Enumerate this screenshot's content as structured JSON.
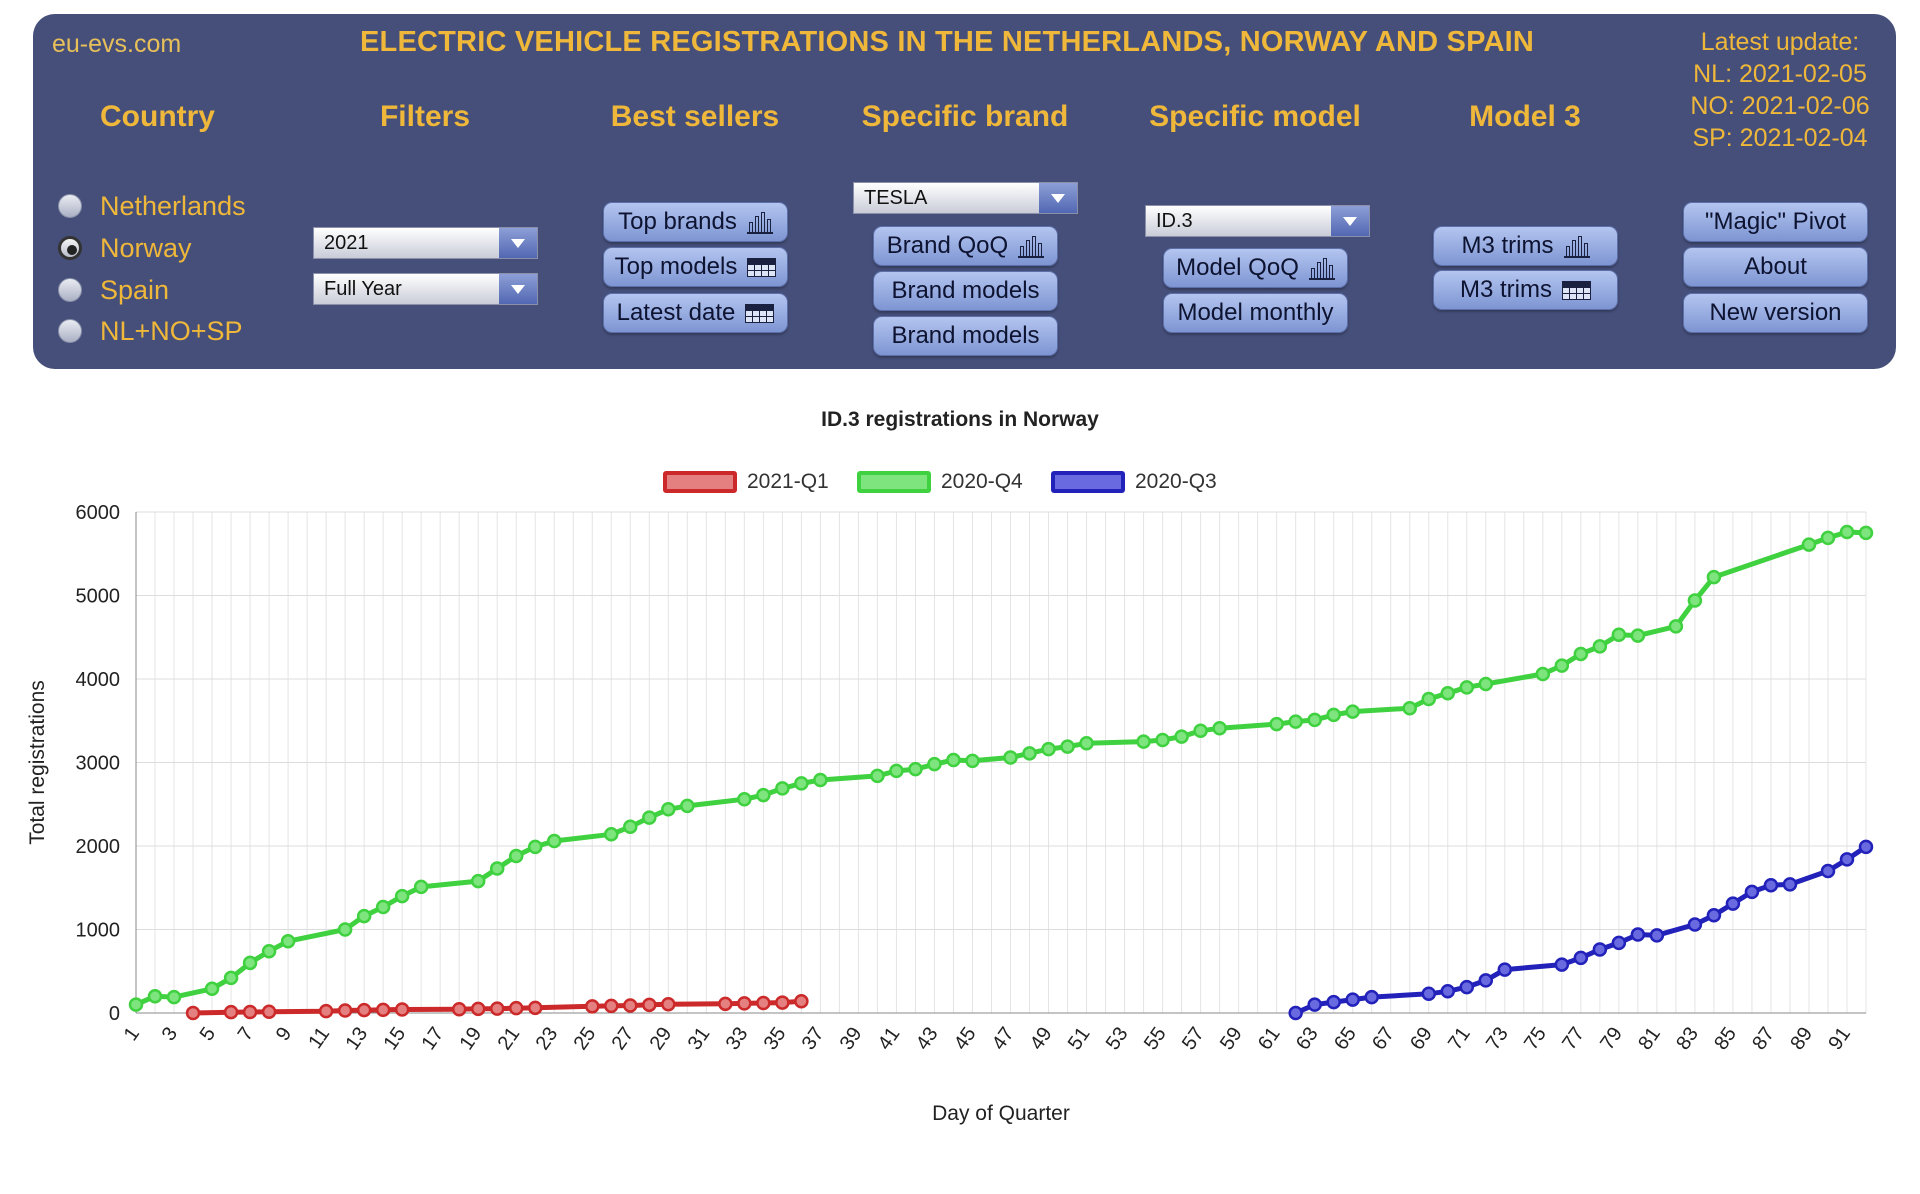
{
  "header": {
    "site": "eu-evs.com",
    "title": "ELECTRIC VEHICLE REGISTRATIONS IN THE NETHERLANDS, NORWAY AND SPAIN",
    "update_lines": [
      "Latest update:",
      "NL: 2021-02-05",
      "NO: 2021-02-06",
      "SP: 2021-02-04"
    ]
  },
  "sections": {
    "country": "Country",
    "filters": "Filters",
    "best": "Best sellers",
    "brand": "Specific brand",
    "model": "Specific model",
    "m3": "Model 3"
  },
  "countries": [
    {
      "label": "Netherlands",
      "selected": false
    },
    {
      "label": "Norway",
      "selected": true
    },
    {
      "label": "Spain",
      "selected": false
    },
    {
      "label": "NL+NO+SP",
      "selected": false
    }
  ],
  "filters": {
    "year": "2021",
    "period": "Full Year"
  },
  "best_sellers": {
    "top_brands": "Top brands",
    "top_models": "Top models",
    "latest_date": "Latest date"
  },
  "brand": {
    "selected": "TESLA",
    "qoq": "Brand QoQ",
    "models1": "Brand models",
    "models2": "Brand models"
  },
  "model": {
    "selected": "ID.3",
    "qoq": "Model QoQ",
    "monthly": "Model monthly"
  },
  "m3": {
    "trims1": "M3 trims",
    "trims2": "M3 trims"
  },
  "extra": {
    "pivot": "\"Magic\" Pivot",
    "about": "About",
    "new_version": "New version"
  },
  "colors": {
    "panel": "#454f7a",
    "accent": "#f0b83a"
  },
  "chart_data": {
    "type": "line",
    "title": "ID.3 registrations in Norway",
    "xlabel": "Day of Quarter",
    "ylabel": "Total registrations",
    "xlim": [
      1,
      92
    ],
    "ylim": [
      0,
      6000
    ],
    "yticks": [
      0,
      1000,
      2000,
      3000,
      4000,
      5000,
      6000
    ],
    "xtick_labels": [
      "1",
      "3",
      "5",
      "7",
      "9",
      "11",
      "13",
      "15",
      "17",
      "19",
      "21",
      "23",
      "25",
      "27",
      "29",
      "31",
      "33",
      "35",
      "37",
      "39",
      "41",
      "43",
      "45",
      "47",
      "49",
      "51",
      "53",
      "55",
      "57",
      "59",
      "61",
      "63",
      "65",
      "67",
      "69",
      "71",
      "73",
      "75",
      "77",
      "79",
      "81",
      "83",
      "85",
      "87",
      "89",
      "91"
    ],
    "legend_position": "top",
    "grid": true,
    "series": [
      {
        "name": "2021-Q1",
        "color": "#cc2a2a",
        "fill": "#e58080",
        "points": [
          [
            4,
            0
          ],
          [
            6,
            10
          ],
          [
            7,
            12
          ],
          [
            8,
            15
          ],
          [
            11,
            22
          ],
          [
            12,
            30
          ],
          [
            13,
            35
          ],
          [
            14,
            38
          ],
          [
            15,
            42
          ],
          [
            18,
            45
          ],
          [
            19,
            50
          ],
          [
            20,
            52
          ],
          [
            21,
            58
          ],
          [
            22,
            62
          ],
          [
            25,
            80
          ],
          [
            26,
            85
          ],
          [
            27,
            90
          ],
          [
            28,
            98
          ],
          [
            29,
            105
          ],
          [
            32,
            110
          ],
          [
            33,
            115
          ],
          [
            34,
            120
          ],
          [
            35,
            125
          ],
          [
            36,
            140
          ]
        ]
      },
      {
        "name": "2020-Q4",
        "color": "#3fd13f",
        "fill": "#7ee57e",
        "points": [
          [
            1,
            100
          ],
          [
            2,
            200
          ],
          [
            3,
            190
          ],
          [
            5,
            290
          ],
          [
            6,
            420
          ],
          [
            7,
            600
          ],
          [
            8,
            740
          ],
          [
            9,
            860
          ],
          [
            12,
            1000
          ],
          [
            13,
            1160
          ],
          [
            14,
            1270
          ],
          [
            15,
            1400
          ],
          [
            16,
            1510
          ],
          [
            19,
            1580
          ],
          [
            20,
            1730
          ],
          [
            21,
            1880
          ],
          [
            22,
            1990
          ],
          [
            23,
            2060
          ],
          [
            26,
            2140
          ],
          [
            27,
            2230
          ],
          [
            28,
            2340
          ],
          [
            29,
            2440
          ],
          [
            30,
            2480
          ],
          [
            33,
            2560
          ],
          [
            34,
            2610
          ],
          [
            35,
            2690
          ],
          [
            36,
            2750
          ],
          [
            37,
            2790
          ],
          [
            40,
            2840
          ],
          [
            41,
            2900
          ],
          [
            42,
            2920
          ],
          [
            43,
            2980
          ],
          [
            44,
            3030
          ],
          [
            45,
            3020
          ],
          [
            47,
            3060
          ],
          [
            48,
            3110
          ],
          [
            49,
            3160
          ],
          [
            50,
            3190
          ],
          [
            51,
            3230
          ],
          [
            54,
            3250
          ],
          [
            55,
            3270
          ],
          [
            56,
            3310
          ],
          [
            57,
            3380
          ],
          [
            58,
            3410
          ],
          [
            61,
            3460
          ],
          [
            62,
            3490
          ],
          [
            63,
            3510
          ],
          [
            64,
            3570
          ],
          [
            65,
            3610
          ],
          [
            68,
            3650
          ],
          [
            69,
            3760
          ],
          [
            70,
            3830
          ],
          [
            71,
            3900
          ],
          [
            72,
            3940
          ],
          [
            75,
            4060
          ],
          [
            76,
            4160
          ],
          [
            77,
            4300
          ],
          [
            78,
            4390
          ],
          [
            79,
            4530
          ],
          [
            80,
            4520
          ],
          [
            82,
            4630
          ],
          [
            83,
            4940
          ],
          [
            84,
            5220
          ],
          [
            89,
            5610
          ],
          [
            90,
            5690
          ],
          [
            91,
            5760
          ],
          [
            92,
            5750
          ]
        ]
      },
      {
        "name": "2020-Q3",
        "color": "#2222bb",
        "fill": "#6a6ae0",
        "points": [
          [
            62,
            0
          ],
          [
            63,
            100
          ],
          [
            64,
            130
          ],
          [
            65,
            160
          ],
          [
            66,
            190
          ],
          [
            69,
            230
          ],
          [
            70,
            260
          ],
          [
            71,
            310
          ],
          [
            72,
            390
          ],
          [
            73,
            520
          ],
          [
            76,
            580
          ],
          [
            77,
            660
          ],
          [
            78,
            760
          ],
          [
            79,
            840
          ],
          [
            80,
            940
          ],
          [
            81,
            930
          ],
          [
            83,
            1060
          ],
          [
            84,
            1170
          ],
          [
            85,
            1310
          ],
          [
            86,
            1450
          ],
          [
            87,
            1530
          ],
          [
            88,
            1540
          ],
          [
            90,
            1700
          ],
          [
            91,
            1840
          ],
          [
            92,
            1990
          ]
        ]
      }
    ]
  }
}
